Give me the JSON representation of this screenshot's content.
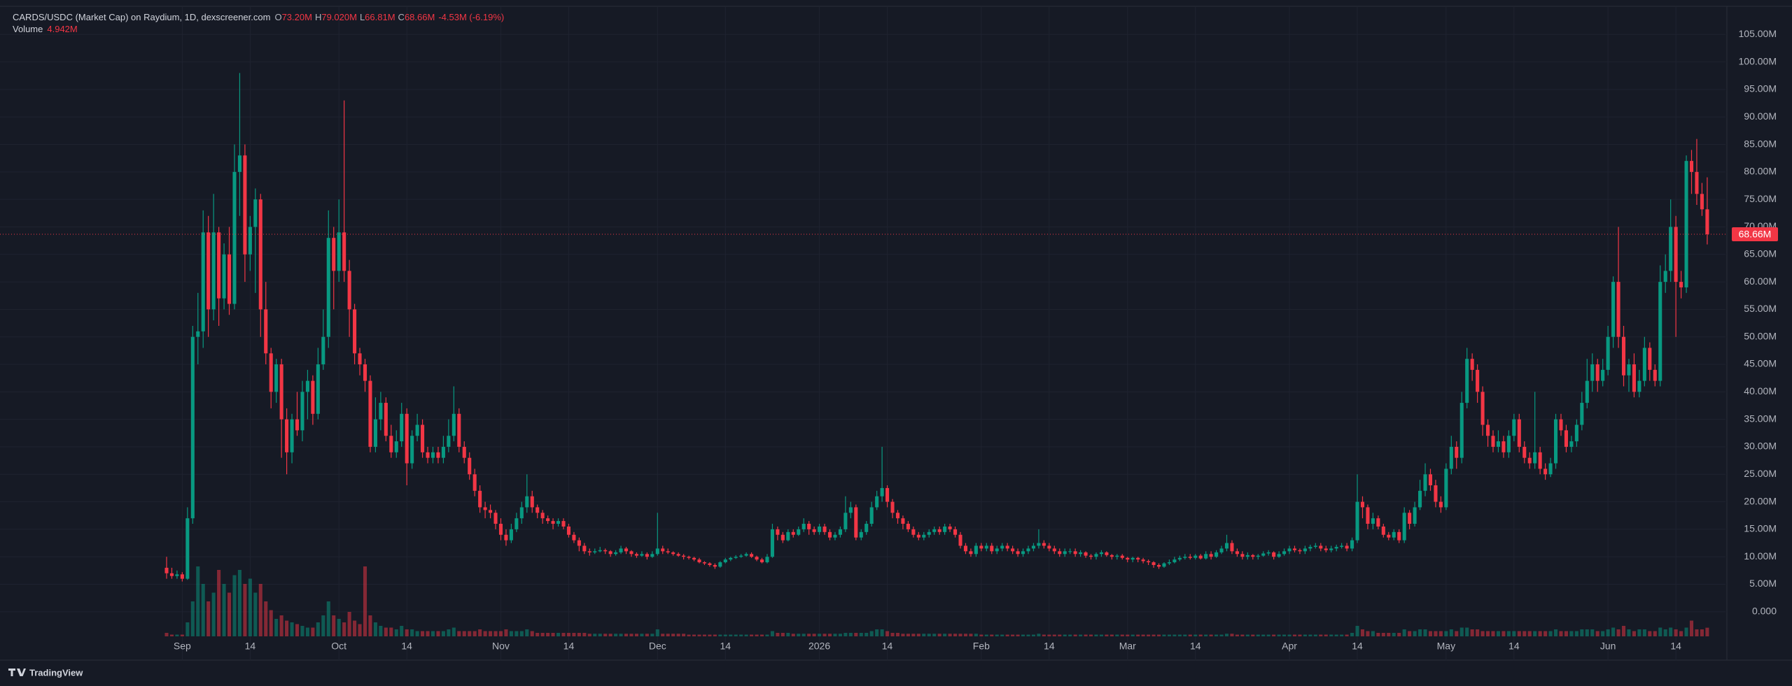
{
  "chart_data": {
    "type": "candlestick",
    "title": "CARDS/USDC (Market Cap) on Raydium, 1D, dexscreener.com",
    "legend_values": [
      {
        "label": "O",
        "value": "73.20M"
      },
      {
        "label": "H",
        "value": "79.020M"
      },
      {
        "label": "L",
        "value": "66.81M"
      },
      {
        "label": "C",
        "value": "68.66M"
      }
    ],
    "change": "-4.53M (-6.19%)",
    "up_color": "#089981",
    "down_color": "#f23645",
    "open": [
      8,
      7,
      6.5,
      6.8,
      6,
      17,
      50,
      51,
      69,
      55,
      69,
      57,
      65,
      56,
      80,
      83,
      65,
      70,
      75,
      55,
      47,
      40,
      45,
      35,
      29,
      35,
      33,
      40,
      42,
      36,
      45,
      50,
      68,
      62,
      69,
      62,
      55,
      47,
      45,
      42,
      30,
      35,
      38,
      32,
      29,
      31,
      36,
      27,
      32,
      34,
      29,
      28,
      29,
      28,
      30,
      32,
      36,
      30,
      28,
      25,
      22,
      19,
      18.5,
      18,
      16,
      14,
      13,
      15,
      17,
      19,
      21,
      19,
      18,
      17,
      16.5,
      16,
      16.5,
      15.5,
      14,
      13,
      12,
      11,
      10.8,
      11,
      11.2,
      11,
      10.5,
      10.8,
      11.5,
      11,
      10.5,
      10.2,
      10.5,
      10,
      10.5,
      11.5,
      11,
      10.8,
      10.5,
      10.2,
      10,
      9.8,
      9.5,
      9,
      8.8,
      8.5,
      8.2,
      9,
      9.5,
      9.8,
      10,
      10.2,
      10.5,
      10,
      9.5,
      9,
      10,
      15,
      14,
      13,
      14.5,
      14,
      15,
      16,
      15,
      14.5,
      15.5,
      14.5,
      13.5,
      14,
      15,
      18,
      19,
      13.5,
      14.5,
      16,
      19,
      21,
      22.5,
      20,
      18,
      17,
      16,
      15,
      14,
      13.5,
      14,
      14.5,
      15,
      14.5,
      15.5,
      15,
      14,
      12,
      11,
      10.5,
      12,
      11.5,
      12,
      11,
      11.5,
      12,
      11.5,
      11,
      10.5,
      11,
      11.5,
      12,
      12.5,
      12,
      11.5,
      11,
      10.5,
      11,
      11,
      10.5,
      10.8,
      10.2,
      10,
      10.5,
      10.8,
      10.3,
      10,
      10.2,
      9.8,
      9.5,
      9.8,
      9.5,
      9.2,
      9,
      8.5,
      8.2,
      8.8,
      9,
      9.5,
      9.8,
      10,
      9.8,
      10.2,
      9.7,
      10.5,
      10,
      10.8,
      11.5,
      12.5,
      11,
      10.5,
      10,
      10.3,
      10,
      10.2,
      10.6,
      10.8,
      10,
      10.5,
      11,
      11.5,
      11.2,
      11,
      11.5,
      11.8,
      12,
      11.5,
      11.2,
      11.5,
      11.8,
      12,
      11.5,
      13,
      20,
      19,
      16,
      17,
      15.5,
      14,
      13.5,
      14.5,
      13,
      18,
      16,
      19,
      22,
      25,
      23,
      20,
      19,
      26,
      30,
      28,
      38,
      46,
      44,
      40,
      34,
      32,
      30,
      31,
      29,
      32,
      35,
      30,
      28,
      27,
      29,
      26,
      25,
      27,
      35,
      33,
      30,
      31,
      34,
      38,
      42,
      45,
      42,
      44,
      50,
      60,
      50,
      43,
      45,
      40,
      42,
      48,
      44,
      42,
      60,
      62,
      70,
      60,
      59,
      82,
      80,
      76,
      73.2
    ],
    "high": [
      10,
      8,
      7.5,
      7.2,
      19,
      52,
      58,
      73,
      72,
      76,
      70,
      67,
      70,
      85,
      98,
      85,
      72,
      77,
      76,
      60,
      48,
      46,
      46,
      37,
      36,
      40,
      42,
      44,
      43,
      48,
      55,
      73,
      70,
      75,
      93,
      64,
      56,
      48,
      46,
      43,
      39,
      40,
      39,
      34,
      33,
      38,
      37,
      33,
      36,
      35,
      30,
      30,
      30,
      32,
      35,
      41,
      37,
      31,
      29,
      26,
      23,
      20,
      19.5,
      18.5,
      17,
      15,
      16,
      18,
      20,
      25,
      22,
      19.5,
      18.5,
      17.5,
      17,
      17,
      17,
      16,
      14.5,
      13.5,
      12.5,
      11.5,
      11.5,
      11.8,
      11.5,
      11.2,
      11.2,
      12,
      11.8,
      11.2,
      10.8,
      11,
      10.8,
      11,
      18,
      12,
      11.5,
      11,
      10.8,
      10.5,
      10.2,
      10,
      9.8,
      9.2,
      9,
      8.8,
      9.2,
      9.8,
      10,
      10.3,
      10.5,
      10.8,
      10.8,
      10.2,
      9.8,
      10.5,
      16,
      15.5,
      14.5,
      15,
      15,
      15.5,
      17,
      16.5,
      15.5,
      16,
      16,
      15,
      14.5,
      15.5,
      21,
      20,
      19.5,
      15,
      16.5,
      20,
      22,
      30,
      23,
      20.5,
      18.5,
      17.5,
      16.5,
      15.5,
      14.5,
      14.5,
      15,
      15.5,
      15.5,
      16,
      16,
      15.5,
      14.5,
      12.5,
      11.5,
      12.5,
      12.5,
      12.5,
      12.5,
      12,
      12.5,
      12.5,
      12,
      11.5,
      11.5,
      12,
      12.5,
      15,
      13,
      12.5,
      12,
      11.5,
      11.5,
      11.5,
      11.5,
      11.2,
      11,
      10.5,
      10.8,
      11.2,
      11,
      10.5,
      10.5,
      10.5,
      10,
      10,
      10,
      9.8,
      9.5,
      9.2,
      8.8,
      9,
      9.5,
      10,
      10.2,
      10.5,
      10.5,
      10.5,
      10.5,
      11,
      11,
      11.2,
      12,
      14,
      13,
      11.5,
      11,
      10.8,
      10.5,
      10.5,
      11,
      11.2,
      11,
      11,
      11.5,
      12,
      12,
      11.5,
      12,
      12.2,
      12.5,
      12.5,
      12,
      12,
      12.2,
      12.5,
      12.5,
      13.5,
      25,
      21,
      19.5,
      18,
      17.5,
      16,
      14.5,
      15,
      15,
      19,
      18.5,
      20,
      24,
      27,
      26,
      24,
      21,
      27,
      32,
      31,
      40,
      48,
      47,
      45,
      41,
      35,
      33,
      33,
      32,
      33,
      36,
      36,
      31,
      29,
      40,
      30,
      27,
      28,
      36,
      36,
      34,
      32,
      35,
      40,
      46,
      47,
      46,
      46,
      52,
      61,
      70,
      52,
      46,
      47,
      44,
      50,
      49,
      45,
      63,
      65,
      75,
      72,
      62,
      83,
      84,
      86,
      78,
      79.02
    ],
    "low": [
      6,
      6,
      6,
      5.5,
      5.8,
      16,
      45,
      48,
      50,
      53,
      52,
      55,
      54,
      55,
      72,
      60,
      62,
      58,
      50,
      45,
      37,
      38,
      28,
      25,
      27,
      32,
      31,
      35,
      34,
      35,
      44,
      48,
      55,
      60,
      60,
      50,
      45,
      43,
      40,
      29,
      29,
      33,
      31,
      28,
      28,
      30,
      23,
      26,
      31,
      28,
      27,
      27,
      27,
      27,
      29,
      31,
      29,
      27,
      24,
      21,
      18,
      17,
      17,
      15,
      13,
      12,
      12.5,
      14.5,
      16,
      18,
      18,
      17,
      16,
      16,
      15,
      15.5,
      15,
      13.5,
      12.5,
      11,
      10.5,
      10.2,
      10.5,
      10.8,
      10.5,
      10,
      10.2,
      10.5,
      10.5,
      10,
      9.8,
      10,
      9.5,
      9.8,
      10.2,
      10.5,
      10.5,
      10.2,
      10,
      9.5,
      9.5,
      9.2,
      8.8,
      8.5,
      8.2,
      7.8,
      8,
      8.8,
      9.2,
      9.6,
      9.8,
      10,
      9.8,
      9.2,
      8.8,
      8.8,
      9.8,
      13,
      12.5,
      12.8,
      13.5,
      13.8,
      14.5,
      14,
      14,
      14,
      14,
      13,
      13,
      13.5,
      14.5,
      17,
      13,
      13,
      14,
      15.5,
      18.5,
      20,
      19,
      17,
      16,
      15,
      14.5,
      13.5,
      13,
      13,
      13.5,
      14,
      14,
      14,
      14.5,
      13.5,
      11.5,
      10.5,
      10,
      10,
      11,
      11,
      10.5,
      10.5,
      11,
      11,
      10.5,
      10,
      10,
      10.5,
      11,
      11.5,
      11.5,
      11,
      10.5,
      10,
      10,
      10.5,
      10,
      10,
      9.8,
      9.5,
      9.5,
      10,
      10,
      9.5,
      9.5,
      9.5,
      9,
      9,
      9,
      8.8,
      8.5,
      8,
      7.8,
      8,
      8.5,
      8.8,
      9.2,
      9.5,
      9.5,
      9.5,
      9.5,
      9.5,
      9.5,
      9.8,
      10.5,
      11,
      10.5,
      10,
      9.5,
      9.5,
      9.5,
      9.5,
      10,
      10.2,
      9.5,
      9.8,
      10.2,
      10.5,
      10.8,
      10.5,
      10.5,
      11,
      11.5,
      11,
      10.8,
      10.8,
      11,
      11.5,
      11,
      11,
      12.5,
      17,
      15,
      15,
      15,
      13.5,
      13,
      13,
      12.5,
      12.5,
      15,
      15.5,
      18.5,
      21,
      22,
      19,
      18,
      18.5,
      25,
      26,
      27,
      37,
      42,
      38,
      32,
      30,
      29,
      29,
      28,
      28,
      31,
      29,
      27,
      26,
      26,
      25,
      24,
      24.5,
      26,
      32,
      29,
      29,
      30,
      33,
      37,
      40,
      40,
      41,
      43,
      48,
      48,
      41,
      40,
      39,
      39,
      41,
      42,
      41,
      41,
      58,
      60,
      50,
      57,
      58,
      76,
      74,
      72,
      66.81
    ],
    "close": [
      7,
      6.5,
      6.8,
      6,
      17,
      50,
      51,
      69,
      55,
      69,
      57,
      65,
      56,
      80,
      83,
      65,
      70,
      75,
      55,
      47,
      40,
      45,
      35,
      29,
      35,
      33,
      40,
      42,
      36,
      45,
      50,
      68,
      62,
      69,
      62,
      55,
      47,
      45,
      42,
      30,
      35,
      38,
      32,
      29,
      31,
      36,
      27,
      32,
      34,
      29,
      28,
      29,
      28,
      30,
      32,
      36,
      30,
      28,
      25,
      22,
      19,
      18.5,
      18,
      16,
      14,
      13,
      15,
      17,
      19,
      21,
      19,
      18,
      17,
      16.5,
      16,
      16.5,
      15.5,
      14,
      13,
      12,
      11,
      10.8,
      11,
      11.2,
      11,
      10.5,
      10.8,
      11.5,
      11,
      10.5,
      10.2,
      10.5,
      10,
      10.5,
      11.5,
      11,
      10.8,
      10.5,
      10.2,
      10,
      9.8,
      9.5,
      9,
      8.8,
      8.5,
      8.2,
      9,
      9.5,
      9.8,
      10,
      10.2,
      10.5,
      10,
      9.5,
      9,
      10,
      15,
      14,
      13,
      14.5,
      14,
      15,
      16,
      15,
      14.5,
      15.5,
      14.5,
      13.5,
      14,
      15,
      18,
      19,
      13.5,
      14.5,
      16,
      19,
      21,
      22.5,
      20,
      18,
      17,
      16,
      15,
      14,
      13.5,
      14,
      14.5,
      15,
      14.5,
      15.5,
      15,
      14,
      12,
      11,
      10.5,
      12,
      11.5,
      12,
      11,
      11.5,
      12,
      11.5,
      11,
      10.5,
      11,
      11.5,
      12,
      12.5,
      12,
      11.5,
      11,
      10.5,
      11,
      11,
      10.5,
      10.8,
      10.2,
      10,
      10.5,
      10.8,
      10.3,
      10,
      10.2,
      9.8,
      9.5,
      9.8,
      9.5,
      9.2,
      9,
      8.5,
      8.2,
      8.8,
      9,
      9.5,
      9.8,
      10,
      9.8,
      10.2,
      9.7,
      10.5,
      10,
      10.8,
      11.5,
      12.5,
      11,
      10.5,
      10,
      10.3,
      10,
      10.2,
      10.6,
      10.8,
      10,
      10.5,
      11,
      11.5,
      11.2,
      11,
      11.5,
      11.8,
      12,
      11.5,
      11.2,
      11.5,
      11.8,
      12,
      11.5,
      13,
      20,
      19,
      16,
      17,
      15.5,
      14,
      13.5,
      14.5,
      13,
      18,
      16,
      19,
      22,
      25,
      23,
      20,
      19,
      26,
      30,
      28,
      38,
      46,
      44,
      40,
      34,
      32,
      30,
      31,
      29,
      32,
      35,
      30,
      28,
      27,
      29,
      26,
      25,
      27,
      35,
      33,
      30,
      31,
      34,
      38,
      42,
      45,
      42,
      44,
      50,
      60,
      50,
      43,
      45,
      40,
      42,
      48,
      44,
      42,
      60,
      62,
      70,
      60,
      59,
      82,
      80,
      76,
      73.2,
      68.66
    ],
    "volume": {
      "name": "Volume",
      "last_label": "4.942M",
      "lim": [
        0,
        120
      ],
      "values": [
        2,
        1,
        1,
        1,
        8,
        20,
        40,
        30,
        20,
        25,
        38,
        30,
        25,
        35,
        38,
        30,
        33,
        25,
        30,
        20,
        15,
        10,
        12,
        9,
        8,
        7,
        6,
        5,
        5,
        8,
        12,
        20,
        12,
        10,
        8,
        14,
        9,
        7,
        40,
        12,
        8,
        6,
        5,
        5,
        4,
        6,
        4,
        4,
        3,
        3,
        3,
        3,
        3,
        3,
        4,
        5,
        3,
        3,
        3,
        3,
        4,
        3,
        3,
        3,
        3,
        4,
        3,
        3,
        3,
        4,
        3,
        2,
        2,
        2,
        2,
        2,
        2,
        2,
        2,
        2,
        2,
        1.5,
        1.5,
        1.5,
        1.5,
        1.5,
        1.5,
        1.5,
        1.5,
        1.5,
        1.5,
        1.5,
        1.5,
        1.5,
        4,
        1.5,
        1.5,
        1.5,
        1.5,
        1.5,
        1,
        1,
        1,
        1,
        1,
        1,
        1,
        1,
        1,
        1,
        1,
        1,
        1,
        1,
        1,
        1,
        3,
        2,
        2,
        2,
        1.5,
        1.5,
        1.5,
        1.5,
        1.5,
        1.5,
        1.5,
        1.5,
        1.5,
        1.5,
        2,
        2,
        2,
        2,
        2,
        3,
        4,
        4,
        3,
        2,
        2,
        1.5,
        1.5,
        1.5,
        1.5,
        1.5,
        1.5,
        1.5,
        1.5,
        1.5,
        1.5,
        1.5,
        1.5,
        1.5,
        1.5,
        1.5,
        1,
        1,
        1,
        1,
        1,
        1,
        1,
        1,
        1,
        1,
        1,
        1.5,
        1,
        1,
        1,
        1,
        1,
        1,
        1,
        1,
        1,
        1,
        1,
        1,
        1,
        1,
        1,
        1,
        1,
        1,
        1,
        1,
        1,
        1,
        1,
        1,
        1,
        1,
        1,
        1,
        1,
        1,
        1,
        1,
        1,
        1,
        1,
        1.5,
        1.5,
        1,
        1,
        1,
        1,
        1,
        1,
        1,
        1,
        1,
        1,
        1,
        1,
        1,
        1,
        1,
        1,
        1,
        1,
        1,
        1,
        1,
        1,
        2,
        6,
        4,
        3,
        3,
        2,
        2,
        2,
        2,
        2,
        4,
        3,
        3,
        4,
        4,
        3,
        3,
        3,
        3,
        4,
        3,
        5,
        5,
        4,
        4,
        3,
        3,
        3,
        3,
        3,
        3,
        3,
        3,
        3,
        3,
        3,
        3,
        3,
        3,
        4,
        3,
        3,
        3,
        3,
        4,
        4,
        4,
        3,
        3,
        4,
        5,
        4,
        6,
        4,
        3,
        4,
        4,
        3,
        3,
        5,
        4,
        5,
        4,
        3,
        5,
        9,
        4,
        4,
        4.942
      ]
    },
    "last_price_label": "68.66M",
    "xlim": [
      -31.9,
      298.5
    ],
    "ylim": [
      -8.8,
      110
    ],
    "xticks": [
      {
        "value": 3,
        "label": "Sep"
      },
      {
        "value": 16,
        "label": "14"
      },
      {
        "value": 33,
        "label": "Oct"
      },
      {
        "value": 46,
        "label": "14"
      },
      {
        "value": 64,
        "label": "Nov"
      },
      {
        "value": 77,
        "label": "14"
      },
      {
        "value": 94,
        "label": "Dec"
      },
      {
        "value": 107,
        "label": "14"
      },
      {
        "value": 125,
        "label": "2026"
      },
      {
        "value": 138,
        "label": "14"
      },
      {
        "value": 156,
        "label": "Feb"
      },
      {
        "value": 169,
        "label": "14"
      },
      {
        "value": 184,
        "label": "Mar"
      },
      {
        "value": 197,
        "label": "14"
      },
      {
        "value": 215,
        "label": "Apr"
      },
      {
        "value": 228,
        "label": "14"
      },
      {
        "value": 245,
        "label": "May"
      },
      {
        "value": 258,
        "label": "14"
      },
      {
        "value": 276,
        "label": "Jun"
      },
      {
        "value": 289,
        "label": "14"
      }
    ],
    "yticks": [
      {
        "value": 0,
        "label": "0.000"
      },
      {
        "value": 5,
        "label": "5.00M"
      },
      {
        "value": 10,
        "label": "10.00M"
      },
      {
        "value": 15,
        "label": "15.00M"
      },
      {
        "value": 20,
        "label": "20.00M"
      },
      {
        "value": 25,
        "label": "25.00M"
      },
      {
        "value": 30,
        "label": "30.00M"
      },
      {
        "value": 35,
        "label": "35.00M"
      },
      {
        "value": 40,
        "label": "40.00M"
      },
      {
        "value": 45,
        "label": "45.00M"
      },
      {
        "value": 50,
        "label": "50.00M"
      },
      {
        "value": 55,
        "label": "55.00M"
      },
      {
        "value": 60,
        "label": "60.00M"
      },
      {
        "value": 65,
        "label": "65.00M"
      },
      {
        "value": 70,
        "label": "70.00M"
      },
      {
        "value": 75,
        "label": "75.00M"
      },
      {
        "value": 80,
        "label": "80.00M"
      },
      {
        "value": 85,
        "label": "85.00M"
      },
      {
        "value": 90,
        "label": "90.00M"
      },
      {
        "value": 95,
        "label": "95.00M"
      },
      {
        "value": 100,
        "label": "100.00M"
      },
      {
        "value": 105,
        "label": "105.00M"
      }
    ],
    "grid": true,
    "watermark": "TradingView"
  }
}
